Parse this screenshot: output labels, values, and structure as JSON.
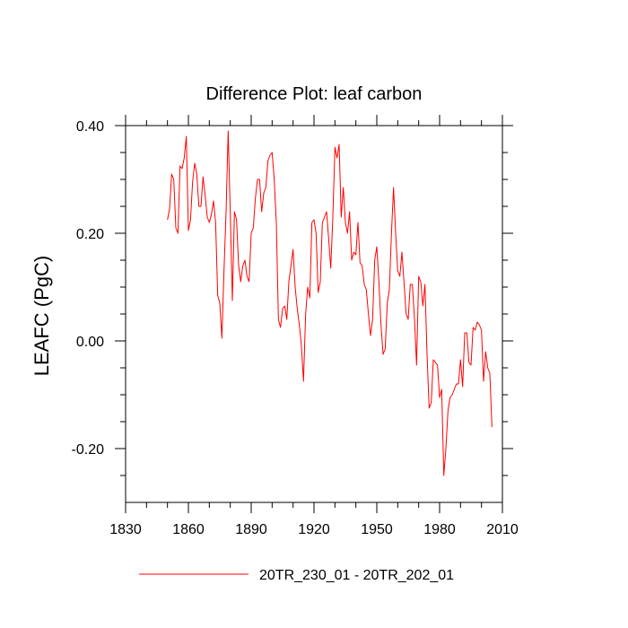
{
  "chart_data": {
    "type": "line",
    "title": "Difference Plot: leaf carbon",
    "xlabel": "",
    "ylabel": "LEAFC  (PgC)",
    "xlim": [
      1830,
      2010
    ],
    "ylim": [
      -0.3,
      0.4
    ],
    "xticks": [
      1830,
      1860,
      1890,
      1920,
      1950,
      1980,
      2010
    ],
    "xtick_labels": [
      "1830",
      "1860",
      "1890",
      "1920",
      "1950",
      "1980",
      "2010"
    ],
    "yticks": [
      -0.2,
      0.0,
      0.2,
      0.4
    ],
    "ytick_labels": [
      "-0.20",
      "0.00",
      "0.20",
      "0.40"
    ],
    "grid": false,
    "legend_position": "bottom-center",
    "series": [
      {
        "name": "20TR_230_01 - 20TR_202_01",
        "color": "#ff0000",
        "x": [
          1850,
          1851,
          1852,
          1853,
          1854,
          1855,
          1856,
          1857,
          1858,
          1859,
          1860,
          1861,
          1862,
          1863,
          1864,
          1865,
          1866,
          1867,
          1868,
          1869,
          1870,
          1871,
          1872,
          1873,
          1874,
          1875,
          1876,
          1877,
          1878,
          1879,
          1880,
          1881,
          1882,
          1883,
          1884,
          1885,
          1886,
          1887,
          1888,
          1889,
          1890,
          1891,
          1892,
          1893,
          1894,
          1895,
          1896,
          1897,
          1898,
          1899,
          1900,
          1901,
          1902,
          1903,
          1904,
          1905,
          1906,
          1907,
          1908,
          1909,
          1910,
          1911,
          1912,
          1913,
          1914,
          1915,
          1916,
          1917,
          1918,
          1919,
          1920,
          1921,
          1922,
          1923,
          1924,
          1925,
          1926,
          1927,
          1928,
          1929,
          1930,
          1931,
          1932,
          1933,
          1934,
          1935,
          1936,
          1937,
          1938,
          1939,
          1940,
          1941,
          1942,
          1943,
          1944,
          1945,
          1946,
          1947,
          1948,
          1949,
          1950,
          1951,
          1952,
          1953,
          1954,
          1955,
          1956,
          1957,
          1958,
          1959,
          1960,
          1961,
          1962,
          1963,
          1964,
          1965,
          1966,
          1967,
          1968,
          1969,
          1970,
          1971,
          1972,
          1973,
          1974,
          1975,
          1976,
          1977,
          1978,
          1979,
          1980,
          1981,
          1982,
          1983,
          1984,
          1985,
          1986,
          1987,
          1988,
          1989,
          1990,
          1991,
          1992,
          1993,
          1994,
          1995,
          1996,
          1997,
          1998,
          1999,
          2000,
          2001,
          2002,
          2003,
          2004,
          2005
        ],
        "y": [
          0.225,
          0.245,
          0.31,
          0.3,
          0.21,
          0.2,
          0.325,
          0.32,
          0.34,
          0.38,
          0.205,
          0.225,
          0.295,
          0.33,
          0.31,
          0.25,
          0.25,
          0.305,
          0.27,
          0.23,
          0.22,
          0.235,
          0.26,
          0.22,
          0.085,
          0.07,
          0.005,
          0.13,
          0.24,
          0.39,
          0.24,
          0.075,
          0.24,
          0.225,
          0.14,
          0.11,
          0.14,
          0.15,
          0.12,
          0.11,
          0.2,
          0.21,
          0.265,
          0.3,
          0.3,
          0.24,
          0.275,
          0.285,
          0.335,
          0.345,
          0.35,
          0.3,
          0.22,
          0.04,
          0.025,
          0.06,
          0.065,
          0.04,
          0.11,
          0.14,
          0.17,
          0.1,
          0.06,
          0.03,
          -0.01,
          -0.075,
          0.05,
          0.1,
          0.08,
          0.22,
          0.225,
          0.2,
          0.09,
          0.11,
          0.22,
          0.23,
          0.24,
          0.19,
          0.135,
          0.23,
          0.36,
          0.34,
          0.365,
          0.23,
          0.285,
          0.22,
          0.2,
          0.24,
          0.15,
          0.165,
          0.16,
          0.22,
          0.145,
          0.14,
          0.105,
          0.095,
          0.05,
          0.01,
          0.04,
          0.15,
          0.175,
          0.11,
          0.03,
          -0.025,
          -0.015,
          0.07,
          0.095,
          0.2,
          0.285,
          0.2,
          0.13,
          0.12,
          0.165,
          0.11,
          0.05,
          0.04,
          0.105,
          0.105,
          0.04,
          -0.045,
          0.12,
          0.11,
          0.065,
          0.105,
          -0.025,
          -0.125,
          -0.115,
          -0.035,
          -0.04,
          -0.045,
          -0.105,
          -0.09,
          -0.25,
          -0.2,
          -0.13,
          -0.105,
          -0.1,
          -0.09,
          -0.08,
          -0.08,
          -0.035,
          -0.085,
          0.015,
          0.015,
          -0.04,
          -0.045,
          0.025,
          0.02,
          0.035,
          0.03,
          0.02,
          -0.075,
          -0.02,
          -0.05,
          -0.06,
          -0.16
        ]
      }
    ]
  }
}
